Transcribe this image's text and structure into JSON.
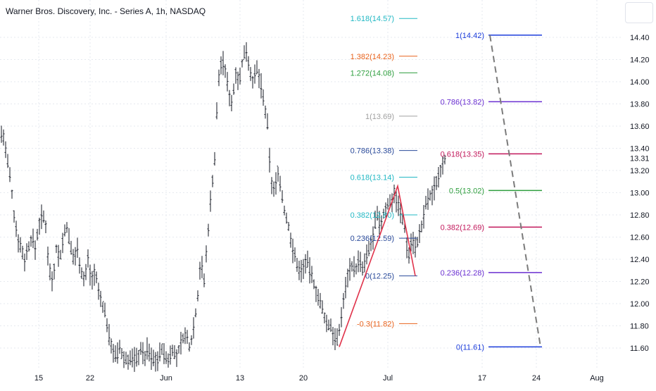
{
  "chart_title": "Warner Bros. Discovery, Inc. - Series A, 1h, NASDAQ",
  "colors": {
    "candle": "#131722",
    "grid": "#e6e9ef",
    "axis_text": "#131722",
    "zigzag": "#e0334b",
    "dashed": "#7b7b7b",
    "blue": "#1c3ddb",
    "purple": "#6a2fd1",
    "magenta": "#c2185b",
    "green": "#2e9e3e",
    "teal": "#22b8c4",
    "orange": "#e8621c",
    "gray": "#a0a0a0",
    "navy": "#2a4a9a"
  },
  "chart_data": {
    "type": "candlestick",
    "y_axis": {
      "ticks": [
        11.6,
        11.8,
        12.0,
        12.2,
        12.4,
        12.6,
        12.8,
        13.0,
        13.2,
        13.4,
        13.6,
        13.8,
        14.0,
        14.2,
        14.4
      ],
      "tick_labels": [
        "11.60",
        "11.80",
        "12.00",
        "12.20",
        "12.40",
        "12.60",
        "12.80",
        "13.00",
        "13.20",
        "13.40",
        "13.60",
        "13.80",
        "14.00",
        "14.20",
        "14.40"
      ],
      "last_price": 13.31,
      "last_price_label": "13.31",
      "range": [
        11.45,
        14.75
      ]
    },
    "x_axis": {
      "labels": [
        "15",
        "22",
        "Jun",
        "13",
        "20",
        "Jul",
        "17",
        "24",
        "Aug"
      ]
    },
    "price_path": [
      [
        0,
        13.55
      ],
      [
        5,
        13.5
      ],
      [
        10,
        13.3
      ],
      [
        15,
        13.1
      ],
      [
        20,
        12.8
      ],
      [
        25,
        12.6
      ],
      [
        30,
        12.5
      ],
      [
        35,
        12.4
      ],
      [
        40,
        12.5
      ],
      [
        45,
        12.6
      ],
      [
        50,
        12.5
      ],
      [
        55,
        12.7
      ],
      [
        60,
        12.8
      ],
      [
        65,
        12.7
      ],
      [
        70,
        12.3
      ],
      [
        75,
        12.2
      ],
      [
        80,
        12.5
      ],
      [
        85,
        12.4
      ],
      [
        90,
        12.6
      ],
      [
        95,
        12.7
      ],
      [
        100,
        12.5
      ],
      [
        105,
        12.4
      ],
      [
        110,
        12.5
      ],
      [
        115,
        12.3
      ],
      [
        120,
        12.2
      ],
      [
        125,
        12.4
      ],
      [
        130,
        12.2
      ],
      [
        135,
        12.3
      ],
      [
        140,
        12.1
      ],
      [
        145,
        12.0
      ],
      [
        150,
        11.9
      ],
      [
        155,
        11.7
      ],
      [
        160,
        11.6
      ],
      [
        165,
        11.5
      ],
      [
        170,
        11.6
      ],
      [
        175,
        11.5
      ],
      [
        180,
        11.5
      ],
      [
        185,
        11.5
      ],
      [
        190,
        11.5
      ],
      [
        195,
        11.5
      ],
      [
        200,
        11.6
      ],
      [
        205,
        11.5
      ],
      [
        210,
        11.6
      ],
      [
        215,
        11.5
      ],
      [
        220,
        11.5
      ],
      [
        225,
        11.5
      ],
      [
        230,
        11.6
      ],
      [
        235,
        11.5
      ],
      [
        240,
        11.5
      ],
      [
        245,
        11.6
      ],
      [
        250,
        11.5
      ],
      [
        255,
        11.6
      ],
      [
        260,
        11.7
      ],
      [
        265,
        11.7
      ],
      [
        270,
        11.6
      ],
      [
        275,
        11.8
      ],
      [
        280,
        12.0
      ],
      [
        285,
        12.4
      ],
      [
        290,
        12.2
      ],
      [
        295,
        12.6
      ],
      [
        300,
        13.0
      ],
      [
        305,
        13.3
      ],
      [
        310,
        14.0
      ],
      [
        315,
        14.2
      ],
      [
        320,
        14.1
      ],
      [
        325,
        13.9
      ],
      [
        330,
        13.8
      ],
      [
        335,
        14.1
      ],
      [
        340,
        14.0
      ],
      [
        345,
        14.2
      ],
      [
        350,
        14.3
      ],
      [
        355,
        14.1
      ],
      [
        360,
        14.0
      ],
      [
        365,
        14.1
      ],
      [
        370,
        14.0
      ],
      [
        375,
        13.8
      ],
      [
        380,
        13.6
      ],
      [
        385,
        13.1
      ],
      [
        390,
        13.0
      ],
      [
        395,
        13.2
      ],
      [
        400,
        13.0
      ],
      [
        405,
        12.8
      ],
      [
        410,
        12.7
      ],
      [
        415,
        12.5
      ],
      [
        420,
        12.4
      ],
      [
        425,
        12.3
      ],
      [
        430,
        12.3
      ],
      [
        435,
        12.4
      ],
      [
        440,
        12.3
      ],
      [
        445,
        12.2
      ],
      [
        450,
        12.1
      ],
      [
        455,
        12.0
      ],
      [
        460,
        11.9
      ],
      [
        465,
        11.8
      ],
      [
        470,
        11.8
      ],
      [
        475,
        11.7
      ],
      [
        480,
        11.65
      ],
      [
        485,
        11.9
      ],
      [
        490,
        12.1
      ],
      [
        495,
        12.3
      ],
      [
        500,
        12.35
      ],
      [
        505,
        12.3
      ],
      [
        510,
        12.4
      ],
      [
        515,
        12.3
      ],
      [
        520,
        12.4
      ],
      [
        525,
        12.5
      ],
      [
        530,
        12.6
      ],
      [
        535,
        12.8
      ],
      [
        540,
        12.7
      ],
      [
        545,
        12.8
      ],
      [
        550,
        12.9
      ],
      [
        555,
        12.9
      ],
      [
        560,
        13.0
      ],
      [
        565,
        12.9
      ],
      [
        570,
        12.8
      ],
      [
        575,
        12.7
      ],
      [
        580,
        12.4
      ],
      [
        585,
        12.6
      ],
      [
        590,
        12.5
      ],
      [
        595,
        12.6
      ],
      [
        600,
        12.7
      ],
      [
        605,
        12.9
      ],
      [
        610,
        12.95
      ],
      [
        615,
        13.0
      ],
      [
        620,
        13.1
      ],
      [
        625,
        13.2
      ],
      [
        630,
        13.3
      ],
      [
        634,
        13.31
      ]
    ],
    "zigzag": [
      [
        482,
        11.61
      ],
      [
        565,
        13.06
      ],
      [
        590,
        12.25
      ]
    ],
    "series": [
      {
        "name": "Left Fibonacci extension",
        "levels": [
          {
            "label": "1.618(14.57)",
            "value": 14.57,
            "color": "teal"
          },
          {
            "label": "1.382(14.23)",
            "value": 14.23,
            "color": "orange"
          },
          {
            "label": "1.272(14.08)",
            "value": 14.08,
            "color": "green"
          },
          {
            "label": "1(13.69)",
            "value": 13.69,
            "color": "gray"
          },
          {
            "label": "0.786(13.38)",
            "value": 13.38,
            "color": "navy"
          },
          {
            "label": "0.618(13.14)",
            "value": 13.14,
            "color": "teal"
          },
          {
            "label": "0.382(12.80)",
            "value": 12.8,
            "color": "teal"
          },
          {
            "label": "0.236(12.59)",
            "value": 12.59,
            "color": "navy"
          },
          {
            "label": "0(12.25)",
            "value": 12.25,
            "color": "navy"
          },
          {
            "label": "-0.3(11.82)",
            "value": 11.82,
            "color": "orange"
          }
        ]
      },
      {
        "name": "Right Fibonacci retracement",
        "levels": [
          {
            "label": "1(14.42)",
            "value": 14.42,
            "color": "blue"
          },
          {
            "label": "0.786(13.82)",
            "value": 13.82,
            "color": "purple"
          },
          {
            "label": "0.618(13.35)",
            "value": 13.35,
            "color": "magenta"
          },
          {
            "label": "0.5(13.02)",
            "value": 13.02,
            "color": "green"
          },
          {
            "label": "0.382(12.69)",
            "value": 12.69,
            "color": "magenta"
          },
          {
            "label": "0.236(12.28)",
            "value": 12.28,
            "color": "purple"
          },
          {
            "label": "0(11.61)",
            "value": 11.61,
            "color": "blue"
          }
        ]
      }
    ]
  }
}
